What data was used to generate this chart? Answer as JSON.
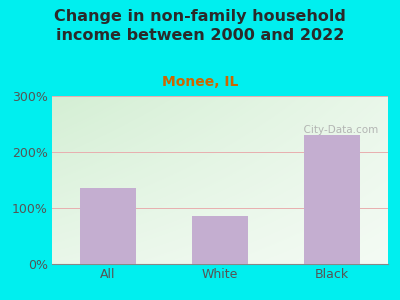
{
  "title": "Change in non-family household\nincome between 2000 and 2022",
  "subtitle": "Monee, IL",
  "categories": [
    "All",
    "White",
    "Black"
  ],
  "values": [
    135,
    85,
    230
  ],
  "bar_color": "#c4aed0",
  "background_color": "#00efef",
  "title_color": "#2a2a2a",
  "subtitle_color": "#cc6600",
  "tick_label_color": "#555555",
  "ylim": [
    0,
    300
  ],
  "yticks": [
    0,
    100,
    200,
    300
  ],
  "watermark": "  City-Data.com",
  "grid_color": "#e8b0b0",
  "title_fontsize": 11.5,
  "subtitle_fontsize": 10
}
